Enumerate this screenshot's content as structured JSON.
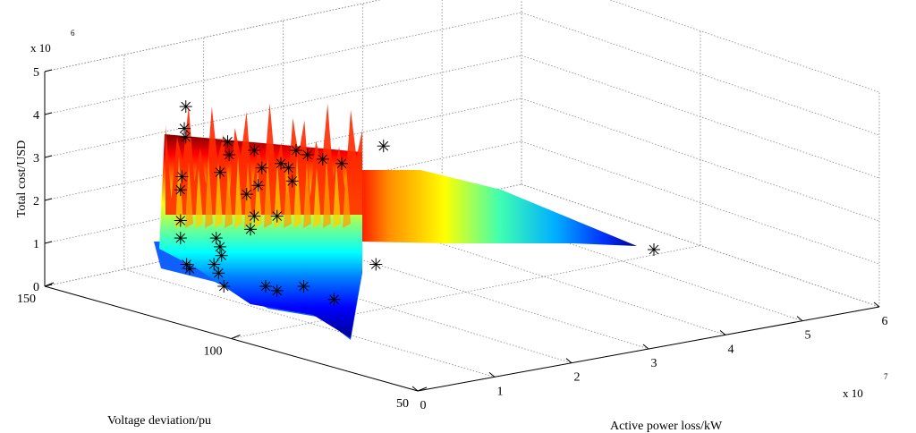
{
  "chart_data": {
    "type": "surface3d",
    "title": "",
    "xlabel": "Active power loss/kW",
    "ylabel": "Voltage deviation/pu",
    "zlabel": "Total cost/USD",
    "x_multiplier": "x 10",
    "x_multiplier_exp": "7",
    "z_multiplier": "x 10",
    "z_multiplier_exp": "6",
    "xlim": [
      0,
      6
    ],
    "ylim": [
      50,
      150
    ],
    "zlim": [
      0,
      5
    ],
    "x_ticks": [
      "0",
      "1",
      "2",
      "3",
      "4",
      "5",
      "6"
    ],
    "y_ticks": [
      "150",
      "100",
      "50"
    ],
    "z_ticks": [
      "0",
      "1",
      "2",
      "3",
      "4",
      "5"
    ],
    "grid": true,
    "colormap": "jet",
    "colormap_colors": [
      "#00008f",
      "#0000ff",
      "#0080ff",
      "#00ffff",
      "#80ff80",
      "#ffff00",
      "#ff8000",
      "#ff0000",
      "#800000"
    ],
    "marker": "asterisk",
    "pareto_points": [
      {
        "x": 0.35,
        "y": 126,
        "z": 4.1
      },
      {
        "x": 0.33,
        "y": 126,
        "z": 3.6
      },
      {
        "x": 0.35,
        "y": 126,
        "z": 3.4
      },
      {
        "x": 0.3,
        "y": 130,
        "z": 2.5
      },
      {
        "x": 0.28,
        "y": 128,
        "z": 2.2
      },
      {
        "x": 0.28,
        "y": 124,
        "z": 1.5
      },
      {
        "x": 0.28,
        "y": 118,
        "z": 1.1
      },
      {
        "x": 0.36,
        "y": 125,
        "z": 0.5
      },
      {
        "x": 0.4,
        "y": 125,
        "z": 0.4
      },
      {
        "x": 0.9,
        "y": 125,
        "z": 3.3
      },
      {
        "x": 0.92,
        "y": 125,
        "z": 3.0
      },
      {
        "x": 0.8,
        "y": 125,
        "z": 2.6
      },
      {
        "x": 0.75,
        "y": 125,
        "z": 1.1
      },
      {
        "x": 0.8,
        "y": 125,
        "z": 0.9
      },
      {
        "x": 0.82,
        "y": 125,
        "z": 0.7
      },
      {
        "x": 0.72,
        "y": 125,
        "z": 0.5
      },
      {
        "x": 0.78,
        "y": 125,
        "z": 0.3
      },
      {
        "x": 0.85,
        "y": 125,
        "z": 0.0
      },
      {
        "x": 1.25,
        "y": 125,
        "z": 3.1
      },
      {
        "x": 1.15,
        "y": 125,
        "z": 2.1
      },
      {
        "x": 1.25,
        "y": 125,
        "z": 1.6
      },
      {
        "x": 1.2,
        "y": 125,
        "z": 1.3
      },
      {
        "x": 1.35,
        "y": 125,
        "z": 2.7
      },
      {
        "x": 1.3,
        "y": 125,
        "z": 2.3
      },
      {
        "x": 1.7,
        "y": 125,
        "z": 2.7
      },
      {
        "x": 1.75,
        "y": 125,
        "z": 2.4
      },
      {
        "x": 1.6,
        "y": 125,
        "z": 2.8
      },
      {
        "x": 1.55,
        "y": 125,
        "z": 1.6
      },
      {
        "x": 1.4,
        "y": 125,
        "z": 0.0
      },
      {
        "x": 1.55,
        "y": 125,
        "z": -0.1
      },
      {
        "x": 1.8,
        "y": 125,
        "z": 3.1
      },
      {
        "x": 1.95,
        "y": 125,
        "z": 3.0
      },
      {
        "x": 2.15,
        "y": 125,
        "z": 2.9
      },
      {
        "x": 2.4,
        "y": 125,
        "z": 2.8
      },
      {
        "x": 1.9,
        "y": 125,
        "z": 0.0
      },
      {
        "x": 2.3,
        "y": 125,
        "z": -0.3
      },
      {
        "x": 2.85,
        "y": 125,
        "z": 0.5
      },
      {
        "x": 2.95,
        "y": 125,
        "z": 3.2
      },
      {
        "x": 6.5,
        "y": 125,
        "z": 2.0
      }
    ]
  }
}
